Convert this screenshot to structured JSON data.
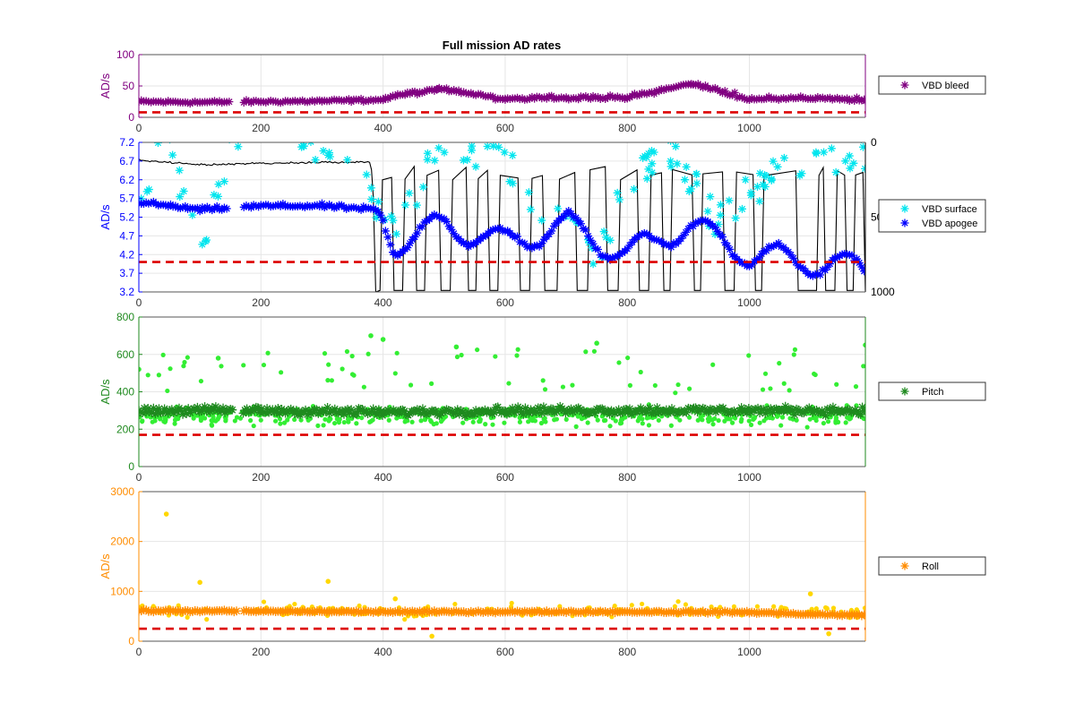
{
  "title": "Full mission AD rates",
  "colors": {
    "bleed": "#800080",
    "surface": "#00e5ee",
    "apogee": "#0000ff",
    "depth": "#000000",
    "pitch": "#1f8a1f",
    "pitch_raw": "#33ee33",
    "roll": "#ff8c00",
    "roll_raw": "#ffd700",
    "threshold": "#dd0000",
    "grid": "#e6e6e6"
  },
  "chart_data": [
    {
      "type": "scatter",
      "panel": "bleed",
      "ylabel": "AD/s",
      "xlim": [
        0,
        1190
      ],
      "ylim": [
        0,
        100
      ],
      "xticks": [
        "0",
        "200",
        "400",
        "600",
        "800",
        "1000"
      ],
      "yticks": [
        "0",
        "50",
        "100"
      ],
      "threshold": 8,
      "grid": true,
      "legend_position": "outside-right",
      "series": [
        {
          "name": "VBD bleed",
          "marker": "asterisk",
          "color": "#800080",
          "level": 25,
          "gap": [
            150,
            170
          ],
          "sample_x": [
            0,
            100,
            200,
            300,
            400,
            490,
            600,
            700,
            800,
            905,
            1000,
            1100,
            1190
          ],
          "sample_y": [
            25,
            24,
            25,
            26,
            28,
            45,
            28,
            30,
            30,
            53,
            28,
            30,
            26
          ]
        }
      ]
    },
    {
      "type": "scatter",
      "panel": "vbd",
      "ylabel": "AD/s",
      "xlim": [
        0,
        1190
      ],
      "ylim": [
        3.2,
        7.2
      ],
      "xticks": [
        "0",
        "200",
        "400",
        "600",
        "800",
        "1000"
      ],
      "yticks": [
        "3.2",
        "3.7",
        "4.2",
        "4.7",
        "5.2",
        "5.7",
        "6.2",
        "6.7",
        "7.2"
      ],
      "y2ticks": [
        "0",
        "500",
        "1000"
      ],
      "y2lim": [
        0,
        1000
      ],
      "threshold": 4.0,
      "grid": true,
      "legend_position": "outside-right",
      "series": [
        {
          "name": "VBD surface",
          "marker": "asterisk",
          "color": "#00e5ee",
          "sample_x": [
            0,
            50,
            100,
            150,
            200,
            300,
            360,
            420,
            500,
            560,
            600,
            650,
            700,
            760,
            800,
            880,
            950,
            1050,
            1100
          ],
          "sample_y": [
            5.7,
            7.2,
            4.1,
            7.3,
            7.3,
            7.2,
            6.2,
            5.0,
            7.2,
            6.8,
            7.0,
            5.0,
            5.4,
            4.3,
            6.2,
            6.8,
            5.0,
            6.5,
            6.9
          ]
        },
        {
          "name": "VBD apogee",
          "marker": "asterisk",
          "color": "#0000ff",
          "sample_x": [
            0,
            100,
            200,
            300,
            390,
            420,
            500,
            600,
            700,
            800,
            900,
            1000,
            1100,
            1190
          ],
          "sample_y": [
            5.6,
            5.4,
            5.5,
            5.5,
            5.4,
            4.5,
            5.0,
            4.5,
            5.0,
            4.2,
            5.0,
            4.2,
            4.0,
            3.8
          ]
        },
        {
          "marker": "line",
          "color": "#000000",
          "axis": "right",
          "sample_x": [
            0,
            100,
            200,
            380,
            395,
            430,
            1190
          ],
          "sample_y": [
            120,
            150,
            140,
            130,
            1000,
            150,
            180
          ]
        }
      ]
    },
    {
      "type": "scatter",
      "panel": "pitch",
      "ylabel": "AD/s",
      "xlim": [
        0,
        1190
      ],
      "ylim": [
        0,
        800
      ],
      "xticks": [
        "0",
        "200",
        "400",
        "600",
        "800",
        "1000"
      ],
      "yticks": [
        "0",
        "200",
        "400",
        "600",
        "800"
      ],
      "threshold": 170,
      "grid": true,
      "legend_position": "outside-right",
      "series": [
        {
          "name": "Pitch",
          "marker": "asterisk",
          "color": "#1f8a1f",
          "level": 300,
          "gap": [
            155,
            170
          ],
          "sample_x": [
            0,
            200,
            400,
            600,
            800,
            1000,
            1190
          ],
          "sample_y": [
            300,
            300,
            290,
            300,
            300,
            300,
            300
          ]
        },
        {
          "marker": "dot",
          "color": "#33ee33",
          "sample_x": [
            0,
            130,
            380,
            400,
            520,
            750,
            1190
          ],
          "sample_y": [
            520,
            580,
            700,
            680,
            640,
            660,
            650
          ]
        }
      ]
    },
    {
      "type": "scatter",
      "panel": "roll",
      "ylabel": "AD/s",
      "xlim": [
        0,
        1190
      ],
      "ylim": [
        0,
        3000
      ],
      "xticks": [
        "0",
        "200",
        "400",
        "600",
        "800",
        "1000"
      ],
      "yticks": [
        "0",
        "1000",
        "2000",
        "3000"
      ],
      "threshold": 250,
      "grid": true,
      "legend_position": "outside-right",
      "series": [
        {
          "name": "Roll",
          "marker": "asterisk",
          "color": "#ff8c00",
          "level": 600,
          "gap": [
            160,
            170
          ],
          "sample_x": [
            0,
            200,
            400,
            600,
            800,
            1000,
            1100,
            1190
          ],
          "sample_y": [
            610,
            600,
            590,
            590,
            590,
            580,
            540,
            520
          ]
        },
        {
          "marker": "dot",
          "color": "#ffd700",
          "sample_x": [
            45,
            100,
            310,
            420,
            480,
            1100,
            1130
          ],
          "sample_y": [
            2550,
            1180,
            1200,
            850,
            100,
            950,
            150
          ]
        }
      ]
    }
  ]
}
